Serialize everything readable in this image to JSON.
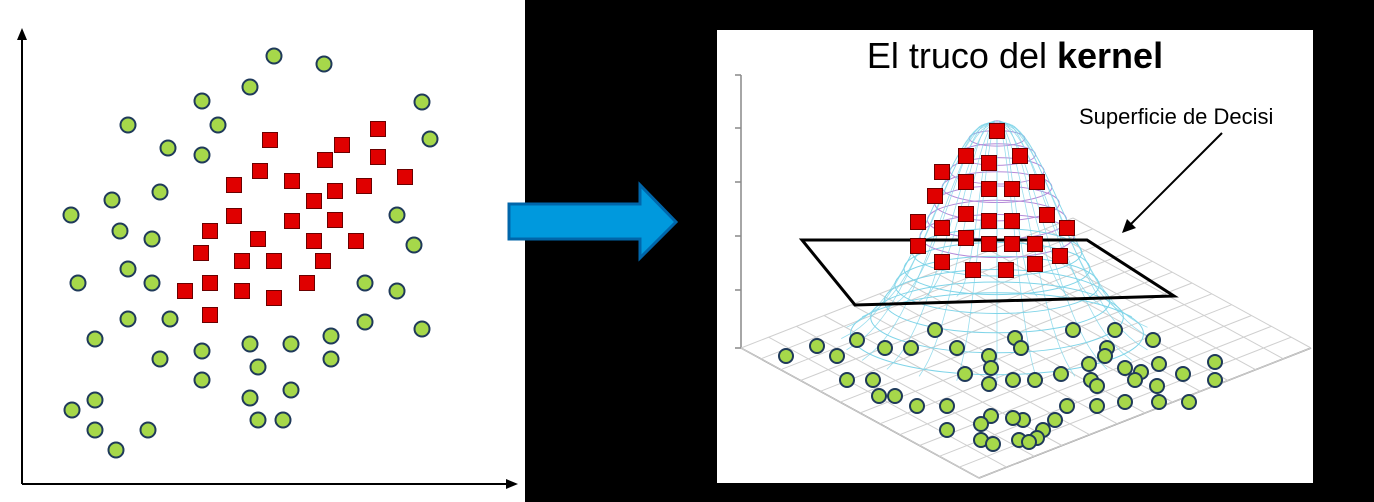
{
  "title": {
    "text": "El truco del ",
    "bold": "kernel"
  },
  "annotation": "Superficie de Decisi",
  "colors": {
    "class_a": "#e00000",
    "class_b": "#a6d84a",
    "point_outline": "#1f3a5a",
    "arrow": "#0099dd",
    "arrow_outline": "#0066aa",
    "mesh_blue": "#7fd4e8",
    "mesh_purple": "#b58ad8"
  },
  "icons": [
    "axis-arrow-icon",
    "right-arrow-icon"
  ]
}
